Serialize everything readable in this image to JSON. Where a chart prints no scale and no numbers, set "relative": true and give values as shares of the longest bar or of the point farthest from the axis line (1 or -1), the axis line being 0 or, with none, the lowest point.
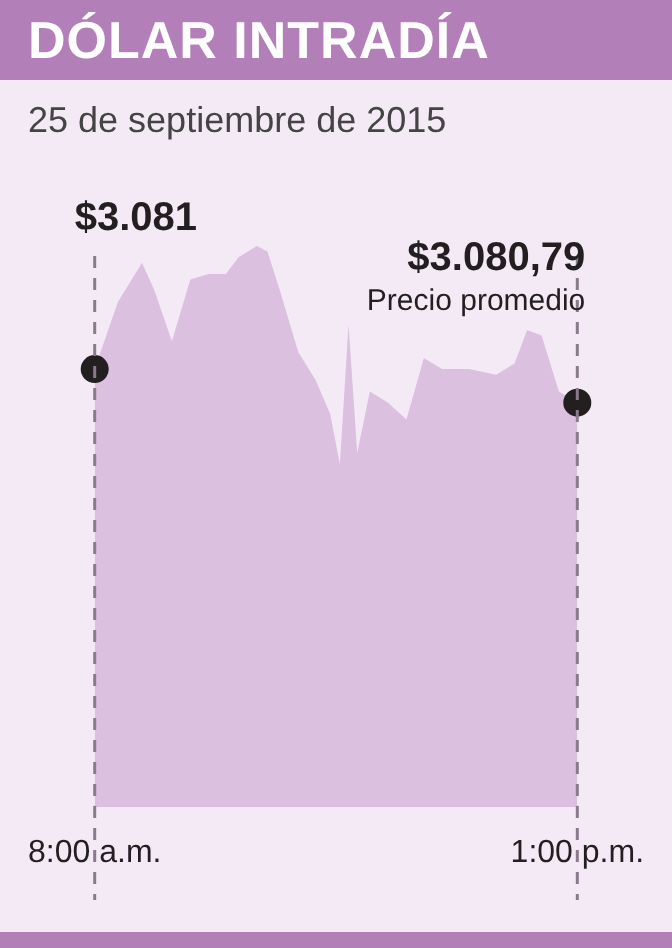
{
  "chart_data": {
    "type": "area",
    "title": "DÓLAR INTRADÍA",
    "subtitle": "25 de septiembre de 2015",
    "relative": true,
    "grid": false,
    "legend": false,
    "xlim": [
      8,
      13
    ],
    "xticks": [
      {
        "value": 8,
        "label": "8:00 a.m."
      },
      {
        "value": 13,
        "label": "1:00 p.m."
      }
    ],
    "series": [
      {
        "color": "#dcc0e0",
        "x": [
          8.0,
          8.24,
          8.49,
          8.62,
          8.8,
          8.99,
          9.18,
          9.36,
          9.49,
          9.68,
          9.79,
          9.92,
          10.11,
          10.29,
          10.44,
          10.54,
          10.63,
          10.72,
          10.85,
          11.04,
          11.23,
          11.41,
          11.6,
          11.88,
          12.16,
          12.35,
          12.48,
          12.63,
          12.81,
          13.0
        ],
        "values": [
          0.78,
          0.9,
          0.97,
          0.92,
          0.83,
          0.94,
          0.95,
          0.95,
          0.98,
          1,
          0.99,
          0.92,
          0.81,
          0.76,
          0.7,
          0.61,
          0.86,
          0.63,
          0.74,
          0.72,
          0.69,
          0.8,
          0.78,
          0.78,
          0.77,
          0.79,
          0.85,
          0.84,
          0.74,
          0.72
        ]
      },
      {
        "type": "scatter",
        "marker": "circle",
        "color": "#231f20",
        "x": [
          8,
          13
        ],
        "values": [
          0.78,
          0.72
        ]
      }
    ],
    "ref_lines": [
      {
        "axis": "x",
        "value": 8,
        "color": "#8a7a8c",
        "line_style": "dashed"
      },
      {
        "axis": "x",
        "value": 13,
        "color": "#8a7a8c",
        "line_style": "dashed"
      }
    ],
    "annotations": [
      "$3.081",
      "$3.080,79",
      "Precio promedio"
    ]
  }
}
